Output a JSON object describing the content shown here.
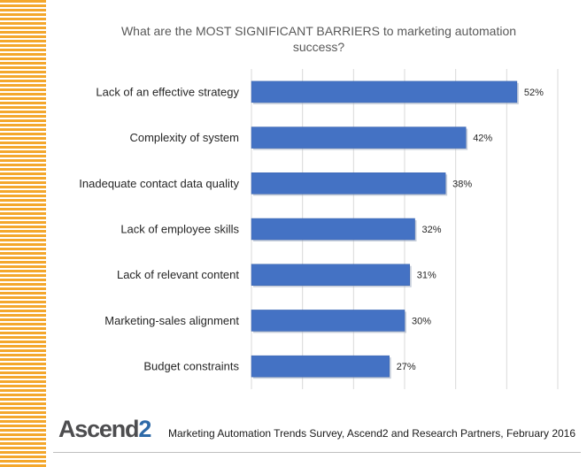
{
  "chart_data": {
    "type": "bar",
    "orientation": "horizontal",
    "title": "What are the MOST SIGNIFICANT  BARRIERS to marketing automation success?",
    "title_lines": [
      "What are the MOST SIGNIFICANT  BARRIERS to marketing automation",
      "success?"
    ],
    "categories": [
      "Lack of an effective strategy",
      "Complexity of system",
      "Inadequate contact data quality",
      "Lack of employee skills",
      "Lack of relevant content",
      "Marketing-sales alignment",
      "Budget constraints"
    ],
    "values": [
      52,
      42,
      38,
      32,
      31,
      30,
      27
    ],
    "value_labels": [
      "52%",
      "42%",
      "38%",
      "32%",
      "31%",
      "30%",
      "27%"
    ],
    "xlim": [
      0,
      60
    ],
    "grid": true,
    "bar_color": "#4472c4"
  },
  "branding": {
    "logo_text": "Ascend",
    "logo_digit": "2",
    "accent_color": "#f4a72c"
  },
  "footer": {
    "source": "Marketing Automation Trends Survey, Ascend2 and Research Partners, February 2016"
  }
}
